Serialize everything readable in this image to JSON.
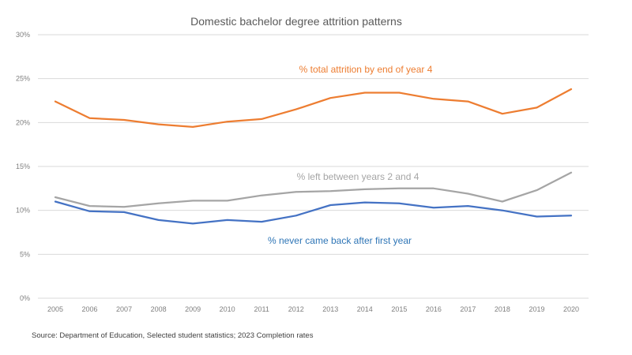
{
  "chart_data": {
    "type": "line",
    "title": "Domestic bachelor degree attrition patterns",
    "xlabel": "",
    "ylabel": "",
    "x": [
      "2005",
      "2006",
      "2007",
      "2008",
      "2009",
      "2010",
      "2011",
      "2012",
      "2013",
      "2014",
      "2015",
      "2016",
      "2017",
      "2018",
      "2019",
      "2020"
    ],
    "ylim": [
      0,
      30
    ],
    "yticks": [
      0,
      5,
      10,
      15,
      20,
      25,
      30
    ],
    "ytick_labels": [
      "0%",
      "5%",
      "10%",
      "15%",
      "20%",
      "25%",
      "30%"
    ],
    "grid": true,
    "legend": "none (direct line labels)",
    "series": [
      {
        "name": "% total attrition by end of year 4",
        "color": "#ed7d31",
        "values": [
          22.4,
          20.5,
          20.3,
          19.8,
          19.5,
          20.1,
          20.4,
          21.5,
          22.8,
          23.4,
          23.4,
          22.7,
          22.4,
          21.0,
          21.7,
          23.8
        ]
      },
      {
        "name": "% left between years 2 and 4",
        "color": "#a5a5a5",
        "values": [
          11.5,
          10.5,
          10.4,
          10.8,
          11.1,
          11.1,
          11.7,
          12.1,
          12.2,
          12.4,
          12.5,
          12.5,
          11.9,
          11.0,
          12.3,
          14.3
        ]
      },
      {
        "name": "% never came back after first year",
        "color": "#4472c4",
        "values": [
          11.0,
          9.9,
          9.8,
          8.9,
          8.5,
          8.9,
          8.7,
          9.4,
          10.6,
          10.9,
          10.8,
          10.3,
          10.5,
          10.0,
          9.3,
          9.4
        ]
      }
    ],
    "annotations": [
      {
        "text": "% total attrition by end of year 4",
        "series": 0,
        "color": "#ed7d31"
      },
      {
        "text": "% left between years 2 and 4",
        "series": 1,
        "color": "#a5a5a5"
      },
      {
        "text": "% never came back after first year",
        "series": 2,
        "color": "#2e75b6"
      }
    ],
    "source": "Source: Department of Education, Selected student statistics; 2023 Completion rates"
  }
}
